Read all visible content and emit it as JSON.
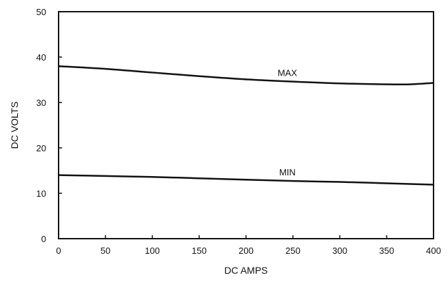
{
  "chart_data": {
    "type": "line",
    "title": "",
    "xlabel": "DC AMPS",
    "ylabel": "DC VOLTS",
    "xlim": [
      0,
      400
    ],
    "ylim": [
      0,
      50
    ],
    "x_ticks": [
      0,
      50,
      100,
      150,
      200,
      250,
      300,
      350,
      400
    ],
    "y_ticks": [
      0,
      10,
      20,
      30,
      40,
      50
    ],
    "grid": false,
    "legend": "none",
    "series": [
      {
        "name": "MAX",
        "x": [
          0,
          50,
          100,
          150,
          200,
          250,
          300,
          350,
          375,
          400
        ],
        "y": [
          38.0,
          37.4,
          36.6,
          35.8,
          35.1,
          34.6,
          34.2,
          34.0,
          34.0,
          34.3
        ]
      },
      {
        "name": "MIN",
        "x": [
          0,
          50,
          100,
          150,
          200,
          250,
          300,
          350,
          400
        ],
        "y": [
          14.0,
          13.8,
          13.6,
          13.3,
          13.0,
          12.7,
          12.5,
          12.2,
          11.9
        ]
      }
    ],
    "colors": {
      "line": "#111111",
      "frame": "#111111"
    }
  }
}
